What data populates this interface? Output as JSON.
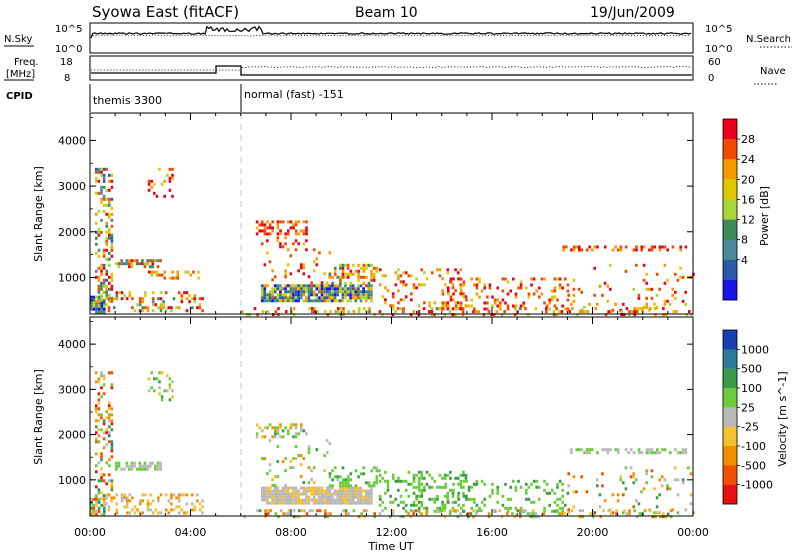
{
  "header": {
    "station": "Syowa East (fitACF)",
    "beam": "Beam 10",
    "date": "19/Jun/2009"
  },
  "top_panels": {
    "nsky_label": "N.Sky",
    "nsky_ticks": [
      "10^5",
      "10^0"
    ],
    "nsearch_label": "N.Search",
    "nsearch_ticks": [
      "10^5",
      "10^0"
    ],
    "freq_label_1": "Freq.",
    "freq_label_2": "[MHz]",
    "freq_ticks": [
      "18",
      "8"
    ],
    "nave_label": "Nave",
    "nave_ticks": [
      "60",
      "0"
    ],
    "cpid_label": "CPID",
    "modes": [
      {
        "label": "themis 3300",
        "start_hour": 0
      },
      {
        "label": "normal (fast) -151",
        "start_hour": 6
      }
    ]
  },
  "chart_data": [
    {
      "type": "heatmap",
      "name": "power",
      "ylabel": "Slant Range [km]",
      "yticks": [
        "4000",
        "3000",
        "2000",
        "1000"
      ],
      "ylim": [
        200,
        4600
      ],
      "xlim": [
        0,
        24
      ],
      "colorbar": {
        "label": "Power [dB]",
        "ticks": [
          "28",
          "24",
          "20",
          "16",
          "12",
          "8",
          "4"
        ],
        "colors": [
          "#e8001c",
          "#f04a00",
          "#f59a00",
          "#e0c800",
          "#a7d63a",
          "#3a8a5a",
          "#4a8a9a",
          "#2a5aa8",
          "#1515e6"
        ]
      },
      "echo_regions": [
        {
          "t0": 0.0,
          "t1": 0.6,
          "r0": 250,
          "r1": 600,
          "density": 0.9,
          "cmin": 0.35,
          "cmax": 1.0
        },
        {
          "t0": 0.2,
          "t1": 0.9,
          "r0": 500,
          "r1": 3400,
          "density": 0.35,
          "cmin": 0.0,
          "cmax": 0.9
        },
        {
          "t0": 1.0,
          "t1": 2.8,
          "r0": 1250,
          "r1": 1400,
          "density": 0.55,
          "cmin": 0.0,
          "cmax": 0.75
        },
        {
          "t0": 0.6,
          "t1": 4.5,
          "r0": 250,
          "r1": 700,
          "density": 0.3,
          "cmin": 0.0,
          "cmax": 0.7
        },
        {
          "t0": 2.3,
          "t1": 3.3,
          "r0": 2800,
          "r1": 3400,
          "density": 0.25,
          "cmin": 0.0,
          "cmax": 0.4
        },
        {
          "t0": 2.2,
          "t1": 4.3,
          "r0": 1000,
          "r1": 1150,
          "density": 0.3,
          "cmin": 0.0,
          "cmax": 0.5
        },
        {
          "t0": 6.6,
          "t1": 8.6,
          "r0": 1950,
          "r1": 2250,
          "density": 0.5,
          "cmin": 0.0,
          "cmax": 0.35
        },
        {
          "t0": 6.8,
          "t1": 11.2,
          "r0": 500,
          "r1": 850,
          "density": 0.85,
          "cmin": 0.2,
          "cmax": 1.0
        },
        {
          "t0": 6.8,
          "t1": 9.5,
          "r0": 900,
          "r1": 1900,
          "density": 0.12,
          "cmin": 0.0,
          "cmax": 0.4
        },
        {
          "t0": 9.5,
          "t1": 11.5,
          "r0": 850,
          "r1": 1300,
          "density": 0.35,
          "cmin": 0.0,
          "cmax": 0.6
        },
        {
          "t0": 11.5,
          "t1": 15.0,
          "r0": 300,
          "r1": 1200,
          "density": 0.22,
          "cmin": 0.0,
          "cmax": 0.5
        },
        {
          "t0": 14.0,
          "t1": 19.0,
          "r0": 300,
          "r1": 1000,
          "density": 0.18,
          "cmin": 0.0,
          "cmax": 0.4
        },
        {
          "t0": 18.8,
          "t1": 23.8,
          "r0": 1600,
          "r1": 1700,
          "density": 0.45,
          "cmin": 0.0,
          "cmax": 0.3
        },
        {
          "t0": 19.0,
          "t1": 24.0,
          "r0": 250,
          "r1": 1300,
          "density": 0.1,
          "cmin": 0.0,
          "cmax": 0.5
        },
        {
          "t0": 6.0,
          "t1": 24.0,
          "r0": 200,
          "r1": 350,
          "density": 0.25,
          "cmin": 0.0,
          "cmax": 0.6
        }
      ]
    },
    {
      "type": "heatmap",
      "name": "velocity",
      "ylabel": "Slant Range [km]",
      "yticks": [
        "4000",
        "3000",
        "2000",
        "1000"
      ],
      "ylim": [
        200,
        4600
      ],
      "xlim": [
        0,
        24
      ],
      "xticks": [
        "00:00",
        "04:00",
        "08:00",
        "12:00",
        "16:00",
        "20:00",
        "00:00"
      ],
      "xlabel": "Time UT",
      "colorbar": {
        "label": "Velocity [m s^-1]",
        "ticks": [
          "1000",
          "500",
          "100",
          "25",
          "-25",
          "-100",
          "-500",
          "-1000"
        ],
        "colors": [
          "#1a3fb0",
          "#2a7a9a",
          "#3a9a4a",
          "#6acc3a",
          "#b8b8b8",
          "#f5c030",
          "#f09000",
          "#f05000",
          "#e81010"
        ]
      },
      "echo_regions": [
        {
          "t0": 0.0,
          "t1": 0.6,
          "r0": 250,
          "r1": 600,
          "density": 0.8,
          "cmin": 0.1,
          "cmax": 0.9
        },
        {
          "t0": 0.2,
          "t1": 0.9,
          "r0": 500,
          "r1": 3400,
          "density": 0.3,
          "cmin": 0.2,
          "cmax": 1.0
        },
        {
          "t0": 1.0,
          "t1": 2.8,
          "r0": 1250,
          "r1": 1400,
          "density": 0.6,
          "cmin": 0.4,
          "cmax": 0.5
        },
        {
          "t0": 0.6,
          "t1": 4.5,
          "r0": 250,
          "r1": 700,
          "density": 0.35,
          "cmin": 0.5,
          "cmax": 0.75
        },
        {
          "t0": 2.3,
          "t1": 3.3,
          "r0": 2800,
          "r1": 3400,
          "density": 0.2,
          "cmin": 0.3,
          "cmax": 0.6
        },
        {
          "t0": 6.6,
          "t1": 8.6,
          "r0": 1950,
          "r1": 2250,
          "density": 0.45,
          "cmin": 0.3,
          "cmax": 0.7
        },
        {
          "t0": 6.8,
          "t1": 11.2,
          "r0": 500,
          "r1": 850,
          "density": 0.85,
          "cmin": 0.45,
          "cmax": 0.6
        },
        {
          "t0": 6.8,
          "t1": 9.5,
          "r0": 900,
          "r1": 1900,
          "density": 0.1,
          "cmin": 0.3,
          "cmax": 0.7
        },
        {
          "t0": 9.5,
          "t1": 11.5,
          "r0": 850,
          "r1": 1300,
          "density": 0.35,
          "cmin": 0.3,
          "cmax": 0.45
        },
        {
          "t0": 11.5,
          "t1": 15.0,
          "r0": 300,
          "r1": 1200,
          "density": 0.25,
          "cmin": 0.3,
          "cmax": 0.4
        },
        {
          "t0": 14.0,
          "t1": 19.0,
          "r0": 300,
          "r1": 1000,
          "density": 0.2,
          "cmin": 0.3,
          "cmax": 0.4
        },
        {
          "t0": 18.8,
          "t1": 23.8,
          "r0": 1600,
          "r1": 1700,
          "density": 0.45,
          "cmin": 0.4,
          "cmax": 0.5
        },
        {
          "t0": 19.0,
          "t1": 24.0,
          "r0": 250,
          "r1": 1300,
          "density": 0.1,
          "cmin": 0.3,
          "cmax": 0.9
        },
        {
          "t0": 6.0,
          "t1": 24.0,
          "r0": 200,
          "r1": 350,
          "density": 0.25,
          "cmin": 0.3,
          "cmax": 0.8
        }
      ]
    }
  ]
}
